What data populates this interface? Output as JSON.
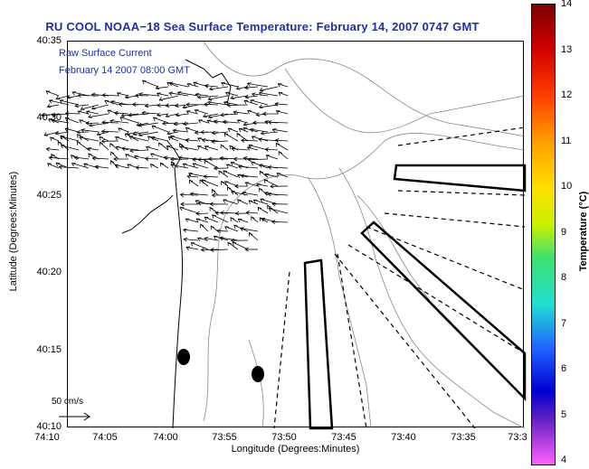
{
  "title": "RU COOL  NOAA−18  Sea Surface Temperature:  February 14, 2007 0747 GMT",
  "overlay": {
    "line1": "Raw Surface Current",
    "line2": "February 14 2007 08:00 GMT"
  },
  "axes": {
    "xlabel": "Longitude (Degrees:Minutes)",
    "ylabel": "Latitude (Degrees:Minutes)",
    "xticks": [
      "74:10",
      "74:05",
      "74:00",
      "73:55",
      "73:50",
      "73:45",
      "73:40",
      "73:35",
      "73:3"
    ],
    "yticks": [
      "40:35",
      "40:30",
      "40:25",
      "40:20",
      "40:15",
      "40:10"
    ]
  },
  "scale_label": "50 cm/s",
  "colorbar": {
    "title": "Temperature (°C)",
    "ticks": [
      "14",
      "13",
      "12",
      "11",
      "10",
      "9",
      "8",
      "7",
      "6",
      "5",
      "4"
    ]
  }
}
